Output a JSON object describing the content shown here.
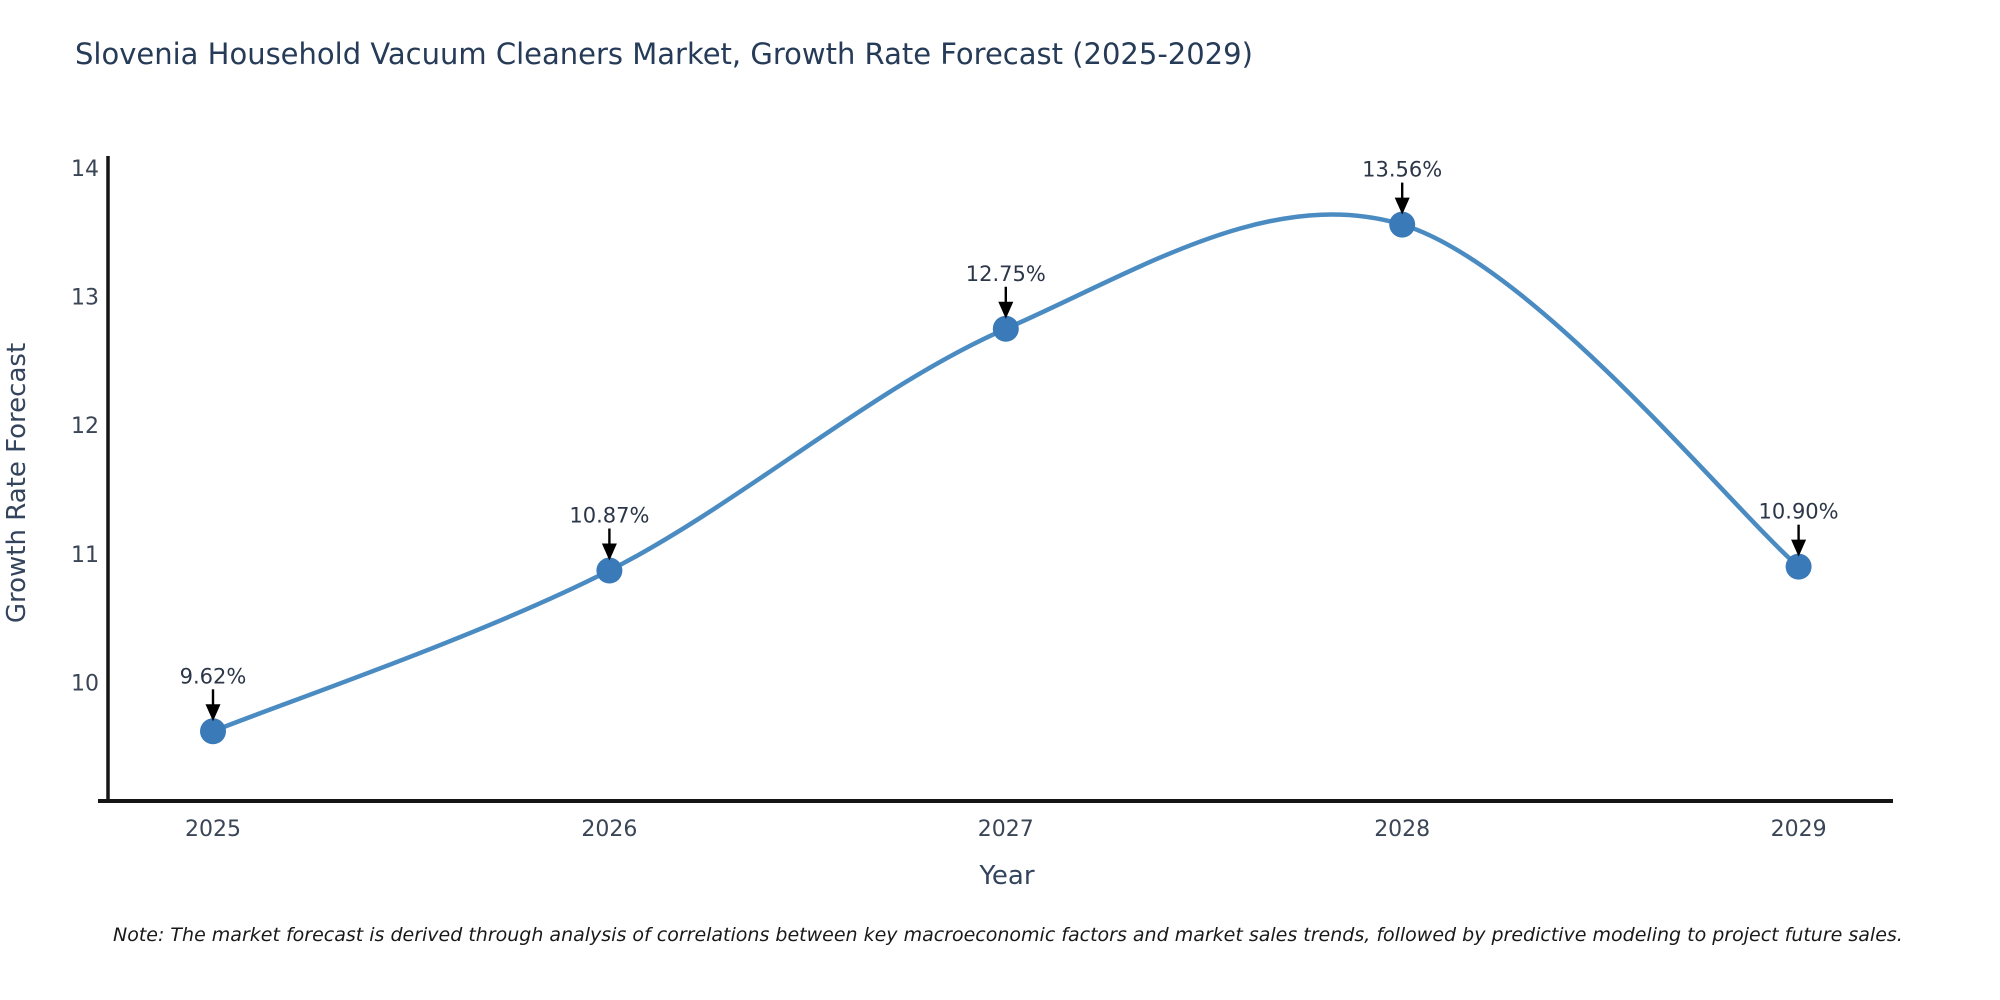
{
  "chart_data": {
    "type": "line",
    "title": "Slovenia Household Vacuum Cleaners Market, Growth Rate Forecast (2025-2029)",
    "xlabel": "Year",
    "ylabel": "Growth Rate Forecast",
    "categories": [
      "2025",
      "2026",
      "2027",
      "2028",
      "2029"
    ],
    "series": [
      {
        "name": "Growth Rate Forecast",
        "values": [
          9.62,
          10.87,
          12.75,
          13.56,
          10.9
        ],
        "point_labels": [
          "9.62%",
          "10.87%",
          "12.75%",
          "13.56%",
          "10.90%"
        ]
      }
    ],
    "yticks": [
      10,
      11,
      12,
      13,
      14
    ],
    "ylim": [
      9.1,
      14.1
    ],
    "grid": false,
    "legend": "none",
    "line_shape": "spline",
    "annotation_arrows": true,
    "note": "Note: The market forecast is derived through analysis of correlations between key macroeconomic factors and market sales trends, followed by predictive modeling to project future sales.",
    "colors": {
      "line": "#4a8bc2",
      "marker": "#3a7ab8",
      "axis_spine": "#151515",
      "title_text": "#263b57",
      "axis_title_text": "#33445c",
      "tick_text": "#3a4556",
      "annotation_text": "#2b3648",
      "arrow": "#000000",
      "note_text": "#191919",
      "background": "#ffffff"
    }
  }
}
